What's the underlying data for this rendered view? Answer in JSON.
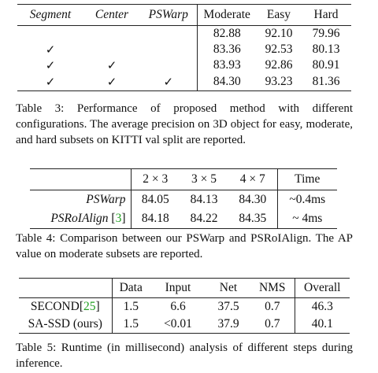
{
  "table3": {
    "headers": [
      "Segment",
      "Center",
      "PSWarp",
      "Moderate",
      "Easy",
      "Hard"
    ],
    "rows": [
      {
        "segment": "",
        "center": "",
        "pswarp": "",
        "moderate": "82.88",
        "easy": "92.10",
        "hard": "79.96"
      },
      {
        "segment": "✓",
        "center": "",
        "pswarp": "",
        "moderate": "83.36",
        "easy": "92.53",
        "hard": "80.13"
      },
      {
        "segment": "✓",
        "center": "✓",
        "pswarp": "",
        "moderate": "83.93",
        "easy": "92.86",
        "hard": "80.91"
      },
      {
        "segment": "✓",
        "center": "✓",
        "pswarp": "✓",
        "moderate": "84.30",
        "easy": "93.23",
        "hard": "81.36"
      }
    ],
    "caption": "Table 3: Performance of proposed method with different configurations. The average precision on 3D object for easy, moderate, and hard subsets on KITTI val split are reported."
  },
  "table4": {
    "headers": [
      "",
      "2 × 3",
      "3 × 5",
      "4 × 7",
      "Time"
    ],
    "rows": [
      {
        "method": "PSWarp",
        "cite": "",
        "v1": "84.05",
        "v2": "84.13",
        "v3": "84.30",
        "time": "~0.4ms"
      },
      {
        "method": "PSRoIAlign ",
        "cite": "3",
        "v1": "84.18",
        "v2": "84.22",
        "v3": "84.35",
        "time": "~ 4ms"
      }
    ],
    "caption": "Table 4: Comparison between our PSWarp and PSRoIAlign. The AP value on moderate subsets are reported."
  },
  "table5": {
    "headers": [
      "",
      "Data",
      "Input",
      "Net",
      "NMS",
      "Overall"
    ],
    "rows": [
      {
        "method": "SECOND",
        "cite": "25",
        "data": "1.5",
        "input": "6.6",
        "net": "37.5",
        "nms": "0.7",
        "overall": "46.3"
      },
      {
        "method": "SA-SSD (ours)",
        "cite": "",
        "data": "1.5",
        "input": "<0.01",
        "net": "37.9",
        "nms": "0.7",
        "overall": "40.1"
      }
    ],
    "caption": "Table 5: Runtime (in millisecond) analysis of different steps during inference."
  }
}
